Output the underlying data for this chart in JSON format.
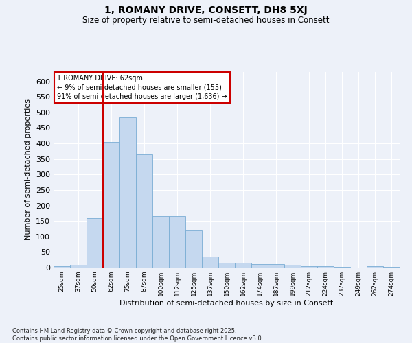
{
  "title_line1": "1, ROMANY DRIVE, CONSETT, DH8 5XJ",
  "title_line2": "Size of property relative to semi-detached houses in Consett",
  "xlabel": "Distribution of semi-detached houses by size in Consett",
  "ylabel": "Number of semi-detached properties",
  "categories": [
    "25sqm",
    "37sqm",
    "50sqm",
    "62sqm",
    "75sqm",
    "87sqm",
    "100sqm",
    "112sqm",
    "125sqm",
    "137sqm",
    "150sqm",
    "162sqm",
    "174sqm",
    "187sqm",
    "199sqm",
    "212sqm",
    "224sqm",
    "237sqm",
    "249sqm",
    "262sqm",
    "274sqm"
  ],
  "values": [
    5,
    8,
    160,
    405,
    485,
    365,
    165,
    165,
    120,
    35,
    15,
    15,
    12,
    10,
    8,
    5,
    4,
    2,
    0,
    5,
    2
  ],
  "bar_color": "#c5d8ef",
  "bar_edge_color": "#7aadd4",
  "annotation_text": "1 ROMANY DRIVE: 62sqm\n← 9% of semi-detached houses are smaller (155)\n91% of semi-detached houses are larger (1,636) →",
  "annotation_box_edge": "#cc0000",
  "vline_color": "#cc0000",
  "vline_x_index": 3,
  "ylim": [
    0,
    630
  ],
  "yticks": [
    0,
    50,
    100,
    150,
    200,
    250,
    300,
    350,
    400,
    450,
    500,
    550,
    600
  ],
  "footer_line1": "Contains HM Land Registry data © Crown copyright and database right 2025.",
  "footer_line2": "Contains public sector information licensed under the Open Government Licence v3.0.",
  "background_color": "#edf1f9",
  "grid_color": "#ffffff"
}
